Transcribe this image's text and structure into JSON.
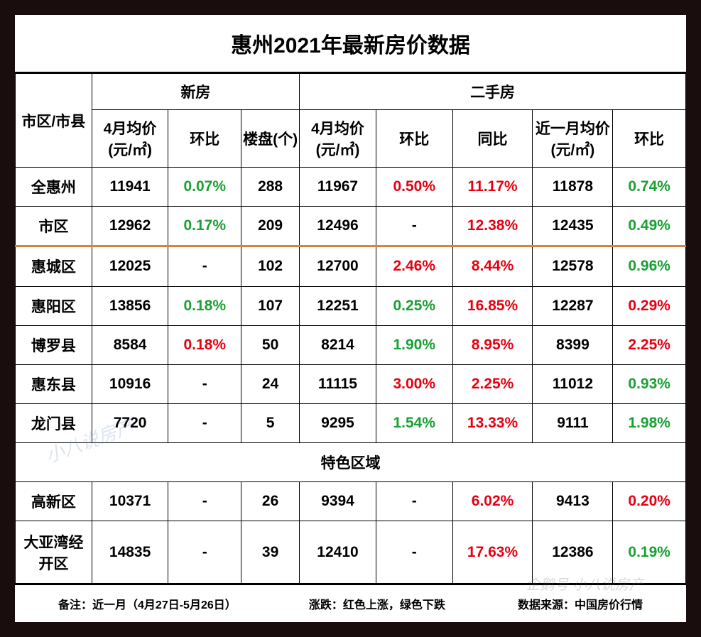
{
  "title": "惠州2021年最新房价数据",
  "headers": {
    "region": "市区/市县",
    "new_group": "新房",
    "old_group": "二手房",
    "new_price": "4月均价(元/㎡)",
    "new_mom": "环比",
    "new_count": "楼盘(个)",
    "old_price": "4月均价(元/㎡)",
    "old_mom": "环比",
    "old_yoy": "同比",
    "old_month_price": "近一月均价(元/㎡)",
    "old_month_mom": "环比"
  },
  "section_label": "特色区域",
  "footer": {
    "note": "备注：近一月（4月27日-5月26日）",
    "legend": "涨跌：红色上涨，绿色下跌",
    "source": "数据来源：中国房价行情"
  },
  "watermark1": "小八说房产",
  "watermark2": "企鹅号 小八说房产",
  "colors": {
    "up": "#e60012",
    "down": "#1aa034",
    "frame": "#1a0d0d",
    "divider": "#d9823b",
    "bg": "#ffffff",
    "text": "#000000"
  },
  "rows": [
    {
      "region": "全惠州",
      "new_price": "11941",
      "new_mom": "0.07%",
      "new_mom_dir": "down",
      "new_count": "288",
      "old_price": "11967",
      "old_mom": "0.50%",
      "old_mom_dir": "up",
      "old_yoy": "11.17%",
      "old_yoy_dir": "up",
      "old_mp": "11878",
      "old_mmom": "0.74%",
      "old_mmom_dir": "down"
    },
    {
      "region": "市区",
      "new_price": "12962",
      "new_mom": "0.17%",
      "new_mom_dir": "down",
      "new_count": "209",
      "old_price": "12496",
      "old_mom": "-",
      "old_mom_dir": "",
      "old_yoy": "12.38%",
      "old_yoy_dir": "up",
      "old_mp": "12435",
      "old_mmom": "0.49%",
      "old_mmom_dir": "down"
    },
    {
      "region": "惠城区",
      "new_price": "12025",
      "new_mom": "-",
      "new_mom_dir": "",
      "new_count": "102",
      "old_price": "12700",
      "old_mom": "2.46%",
      "old_mom_dir": "up",
      "old_yoy": "8.44%",
      "old_yoy_dir": "up",
      "old_mp": "12578",
      "old_mmom": "0.96%",
      "old_mmom_dir": "down",
      "divider": true
    },
    {
      "region": "惠阳区",
      "new_price": "13856",
      "new_mom": "0.18%",
      "new_mom_dir": "down",
      "new_count": "107",
      "old_price": "12251",
      "old_mom": "0.25%",
      "old_mom_dir": "down",
      "old_yoy": "16.85%",
      "old_yoy_dir": "up",
      "old_mp": "12287",
      "old_mmom": "0.29%",
      "old_mmom_dir": "up"
    },
    {
      "region": "博罗县",
      "new_price": "8584",
      "new_mom": "0.18%",
      "new_mom_dir": "up",
      "new_count": "50",
      "old_price": "8214",
      "old_mom": "1.90%",
      "old_mom_dir": "down",
      "old_yoy": "8.95%",
      "old_yoy_dir": "up",
      "old_mp": "8399",
      "old_mmom": "2.25%",
      "old_mmom_dir": "up"
    },
    {
      "region": "惠东县",
      "new_price": "10916",
      "new_mom": "-",
      "new_mom_dir": "",
      "new_count": "24",
      "old_price": "11115",
      "old_mom": "3.00%",
      "old_mom_dir": "up",
      "old_yoy": "2.25%",
      "old_yoy_dir": "up",
      "old_mp": "11012",
      "old_mmom": "0.93%",
      "old_mmom_dir": "down"
    },
    {
      "region": "龙门县",
      "new_price": "7720",
      "new_mom": "-",
      "new_mom_dir": "",
      "new_count": "5",
      "old_price": "9295",
      "old_mom": "1.54%",
      "old_mom_dir": "down",
      "old_yoy": "13.33%",
      "old_yoy_dir": "up",
      "old_mp": "9111",
      "old_mmom": "1.98%",
      "old_mmom_dir": "down"
    }
  ],
  "special_rows": [
    {
      "region": "高新区",
      "new_price": "10371",
      "new_mom": "-",
      "new_mom_dir": "",
      "new_count": "26",
      "old_price": "9394",
      "old_mom": "-",
      "old_mom_dir": "",
      "old_yoy": "6.02%",
      "old_yoy_dir": "up",
      "old_mp": "9413",
      "old_mmom": "0.20%",
      "old_mmom_dir": "up"
    },
    {
      "region": "大亚湾经开区",
      "new_price": "14835",
      "new_mom": "-",
      "new_mom_dir": "",
      "new_count": "39",
      "old_price": "12410",
      "old_mom": "-",
      "old_mom_dir": "",
      "old_yoy": "17.63%",
      "old_yoy_dir": "up",
      "old_mp": "12386",
      "old_mmom": "0.19%",
      "old_mmom_dir": "down"
    }
  ]
}
